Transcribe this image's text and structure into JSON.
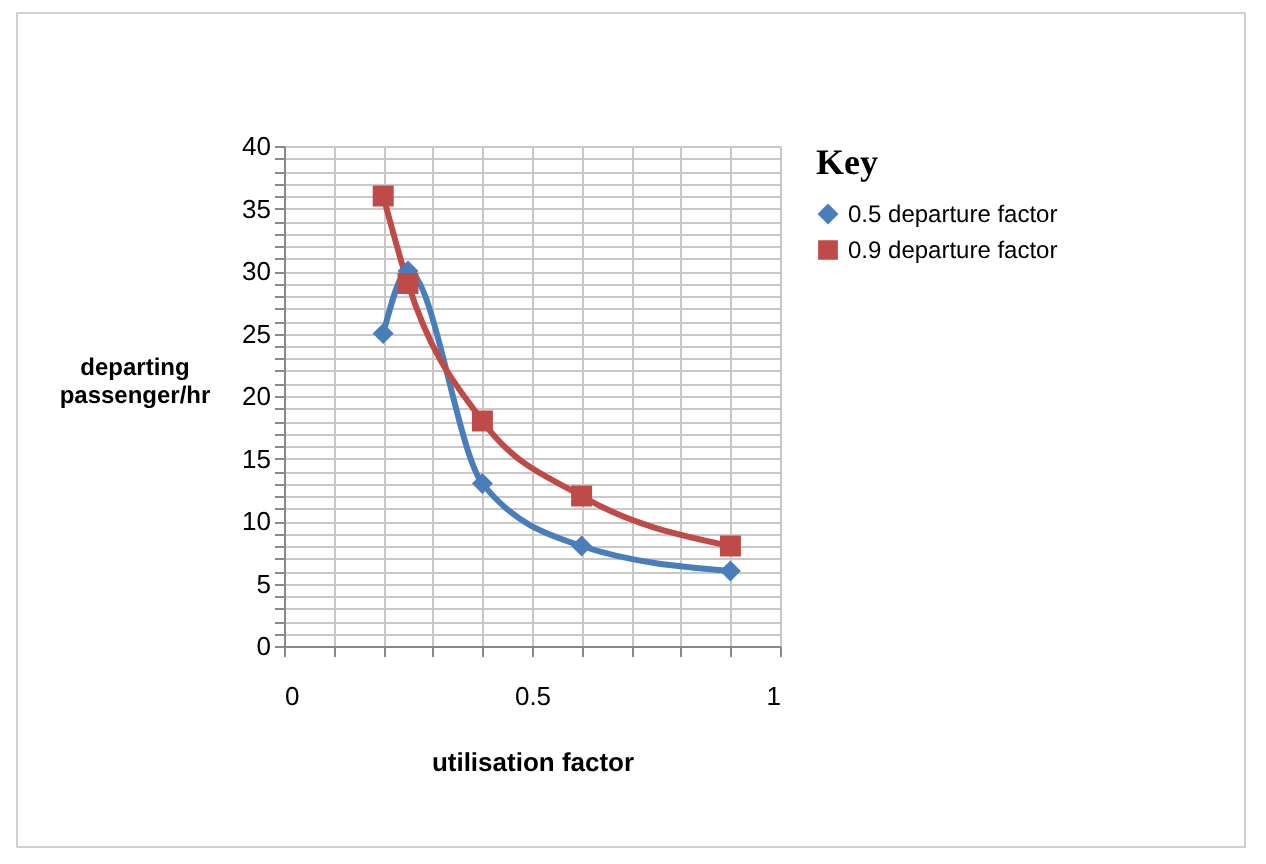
{
  "chart_data": {
    "type": "line",
    "xlabel": "utilisation factor",
    "ylabel": "departing passenger/hr",
    "legend_title": "Key",
    "legend": "right",
    "grid": true,
    "line_style": "solid",
    "xlim": [
      0,
      1
    ],
    "ylim": [
      0,
      40
    ],
    "xticks": [
      0,
      {
        "value": 0.1,
        "label": null
      },
      {
        "value": 0.2,
        "label": null
      },
      {
        "value": 0.3,
        "label": null
      },
      {
        "value": 0.4,
        "label": null
      },
      0.5,
      {
        "value": 0.6,
        "label": null
      },
      {
        "value": 0.7,
        "label": null
      },
      {
        "value": 0.8,
        "label": null
      },
      {
        "value": 0.9,
        "label": null
      },
      1
    ],
    "yticks": [
      0,
      {
        "value": 1,
        "label": null
      },
      {
        "value": 2,
        "label": null
      },
      {
        "value": 3,
        "label": null
      },
      {
        "value": 4,
        "label": null
      },
      5,
      {
        "value": 6,
        "label": null
      },
      {
        "value": 7,
        "label": null
      },
      {
        "value": 8,
        "label": null
      },
      {
        "value": 9,
        "label": null
      },
      10,
      {
        "value": 11,
        "label": null
      },
      {
        "value": 12,
        "label": null
      },
      {
        "value": 13,
        "label": null
      },
      {
        "value": 14,
        "label": null
      },
      15,
      {
        "value": 16,
        "label": null
      },
      {
        "value": 17,
        "label": null
      },
      {
        "value": 18,
        "label": null
      },
      {
        "value": 19,
        "label": null
      },
      20,
      {
        "value": 21,
        "label": null
      },
      {
        "value": 22,
        "label": null
      },
      {
        "value": 23,
        "label": null
      },
      {
        "value": 24,
        "label": null
      },
      25,
      {
        "value": 26,
        "label": null
      },
      {
        "value": 27,
        "label": null
      },
      {
        "value": 28,
        "label": null
      },
      {
        "value": 29,
        "label": null
      },
      30,
      {
        "value": 31,
        "label": null
      },
      {
        "value": 32,
        "label": null
      },
      {
        "value": 33,
        "label": null
      },
      {
        "value": 34,
        "label": null
      },
      35,
      {
        "value": 36,
        "label": null
      },
      {
        "value": 37,
        "label": null
      },
      {
        "value": 38,
        "label": null
      },
      {
        "value": 39,
        "label": null
      },
      40
    ],
    "x": [
      0.2,
      0.25,
      0.4,
      0.6,
      0.9
    ],
    "series": [
      {
        "name": "0.5 departure factor",
        "color": "#4a7ebb",
        "marker": "diamond",
        "values": [
          25,
          30,
          13,
          8,
          6
        ]
      },
      {
        "name": "0.9 departure factor",
        "color": "#be4b48",
        "marker": "square",
        "values": [
          36,
          29,
          18,
          12,
          8
        ]
      }
    ]
  }
}
